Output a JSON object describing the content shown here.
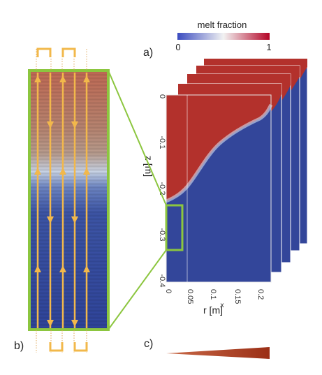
{
  "colorbar": {
    "title": "melt fraction",
    "min_label": "0",
    "max_label": "1",
    "colors": [
      "#3b4cc0",
      "#ffffff",
      "#b40426"
    ]
  },
  "panel_labels": {
    "a": "a)",
    "b": "b)",
    "c": "c)"
  },
  "axes": {
    "z_label": "z [m]",
    "r_label": "r [m]",
    "z_ticks": [
      "0",
      "-0.1",
      "-0.2",
      "-0.3",
      "-0.4"
    ],
    "r_ticks": [
      "0",
      "0.05",
      "0.1",
      "0.15",
      "0.2"
    ],
    "x_marker": "x"
  },
  "colors": {
    "melt": "#b3312c",
    "solid": "#33469a",
    "highlight": "#8cc63f",
    "flow": "#f2b84b",
    "wedge": "#a8391d"
  }
}
